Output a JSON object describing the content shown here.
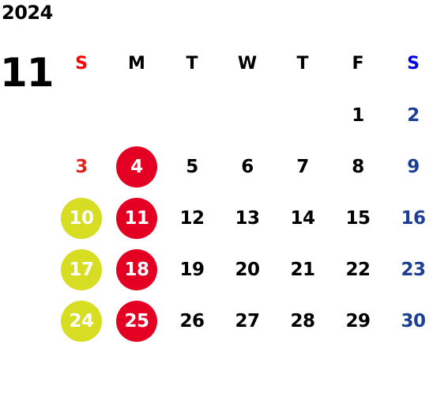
{
  "year": "2024",
  "month": "11",
  "weekdays": [
    "S",
    "M",
    "T",
    "W",
    "T",
    "F",
    "S"
  ],
  "weeks": [
    [
      "",
      "",
      "",
      "",
      "",
      "1",
      "2"
    ],
    [
      "3",
      "4",
      "5",
      "6",
      "7",
      "8",
      "9"
    ],
    [
      "10",
      "11",
      "12",
      "13",
      "14",
      "15",
      "16"
    ],
    [
      "17",
      "18",
      "19",
      "20",
      "21",
      "22",
      "23"
    ],
    [
      "24",
      "25",
      "26",
      "27",
      "28",
      "29",
      "30"
    ]
  ],
  "colors": {
    "sunday_header": "#ff0000",
    "saturday_header": "#0000e6",
    "sunday_text": "#e2241d",
    "saturday_text": "#1c3f94",
    "red_circle": "#e30022",
    "yellow_circle": "#d6dd22"
  }
}
